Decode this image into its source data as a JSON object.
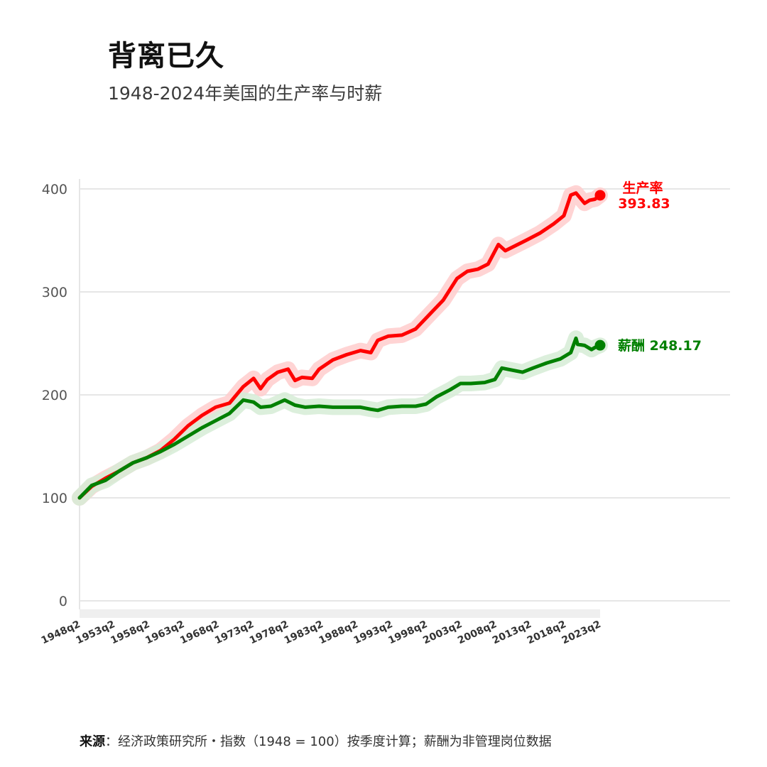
{
  "title": "背离已久",
  "subtitle": "1948-2024年美国的生产率与时薪",
  "footer": {
    "source_label": "来源",
    "source_text": "：经济政策研究所・指数（1948 = 100）按季度计算；薪酬为非管理岗位数据"
  },
  "colors": {
    "productivity": "#ff0000",
    "productivity_halo": "#ffcccc",
    "compensation": "#008000",
    "compensation_halo": "#d6ecd6",
    "grid": "#e6e6e6"
  },
  "chart_data": {
    "type": "line",
    "title": "背离已久",
    "subtitle": "1948-2024年美国的生产率与时薪",
    "xlabel": "",
    "ylabel": "",
    "ylim": [
      0,
      400
    ],
    "yticks": [
      0,
      100,
      200,
      300,
      400
    ],
    "xticks": [
      "1948q2",
      "1953q2",
      "1958q2",
      "1963q2",
      "1968q2",
      "1973q2",
      "1978q2",
      "1983q2",
      "1988q2",
      "1993q2",
      "1998q2",
      "2003q2",
      "2008q2",
      "2013q2",
      "2018q2",
      "2023q2"
    ],
    "xrange": [
      1948.25,
      2023.75
    ],
    "grid": true,
    "series": [
      {
        "name": "生产率",
        "end_label_name": "生产率",
        "end_label_value": "393.83",
        "x": [
          1948.25,
          1950,
          1952,
          1954,
          1956,
          1958,
          1960,
          1962,
          1964,
          1966,
          1968,
          1970,
          1972,
          1973.5,
          1974.5,
          1975.5,
          1977,
          1978.5,
          1979.5,
          1980.5,
          1982,
          1983,
          1985,
          1987,
          1989,
          1990.5,
          1991.5,
          1993,
          1995,
          1997,
          1999,
          2001,
          2003,
          2004.5,
          2006,
          2007.5,
          2009,
          2010,
          2011.5,
          2013,
          2015,
          2017,
          2018.5,
          2019.5,
          2020.25,
          2020.75,
          2021.5,
          2022.25,
          2023,
          2023.75
        ],
        "y": [
          100,
          111,
          119,
          126,
          134,
          139,
          146,
          157,
          170,
          180,
          188,
          192,
          208,
          216,
          206,
          215,
          222,
          225,
          214,
          217,
          216,
          225,
          234,
          239,
          243,
          241,
          253,
          257,
          258,
          264,
          278,
          292,
          313,
          320,
          322,
          327,
          346,
          340,
          345,
          350,
          357,
          366,
          374,
          394,
          396,
          392,
          386,
          389,
          390,
          393.83
        ]
      },
      {
        "name": "薪酬",
        "end_label_name": "薪酬",
        "end_label_value": "248.17",
        "x": [
          1948.25,
          1950,
          1952,
          1954,
          1956,
          1958,
          1960,
          1962,
          1964,
          1966,
          1968,
          1970,
          1972,
          1973.5,
          1974.5,
          1976,
          1978,
          1979.5,
          1981,
          1983,
          1985,
          1987,
          1989,
          1990.5,
          1991.5,
          1993,
          1995,
          1997,
          1998.5,
          2000,
          2002,
          2003.5,
          2005,
          2007,
          2008.5,
          2009.5,
          2011,
          2012.5,
          2014,
          2016,
          2018,
          2019.5,
          2020.25,
          2020.5,
          2021.5,
          2022.5,
          2023,
          2023.75
        ],
        "y": [
          100,
          112,
          117,
          126,
          134,
          139,
          145,
          152,
          160,
          168,
          175,
          182,
          195,
          193,
          188,
          189,
          195,
          190,
          188,
          189,
          188,
          188,
          188,
          186,
          185,
          188,
          189,
          189,
          191,
          198,
          205,
          211,
          211,
          212,
          215,
          226,
          224,
          222,
          226,
          231,
          235,
          241,
          255,
          249,
          248,
          244,
          246,
          248.17
        ]
      }
    ]
  }
}
